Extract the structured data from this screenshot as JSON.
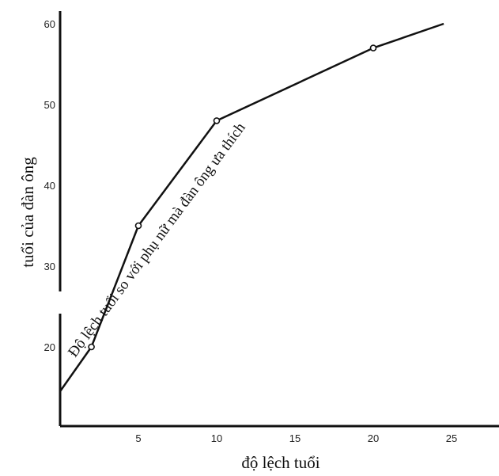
{
  "chart_data": {
    "type": "line",
    "title": "",
    "xlabel": "độ lệch tuổi",
    "ylabel": "tuổi của đàn ông",
    "xlim": [
      0,
      27.5
    ],
    "ylim": [
      10,
      62
    ],
    "x_ticks": [
      5,
      10,
      15,
      20,
      25
    ],
    "y_ticks": [
      20,
      30,
      40,
      50,
      60
    ],
    "grid": false,
    "y_axis_break": true,
    "series": [
      {
        "x": [
          0,
          2,
          5,
          10,
          20,
          24.5
        ],
        "y": [
          14.5,
          20,
          35,
          48,
          57,
          60
        ],
        "markers_at": [
          2,
          5,
          10,
          20
        ]
      }
    ],
    "annotation": "Độ lệch tuổi so với phụ nữ mà đàn ông ưa thích"
  }
}
